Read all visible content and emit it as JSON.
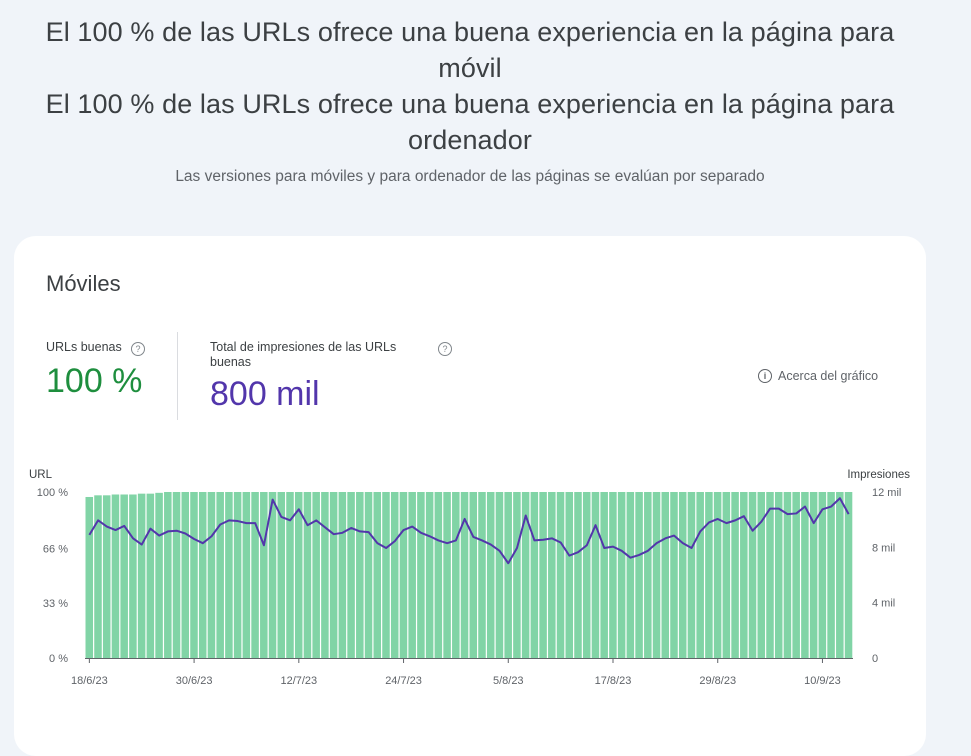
{
  "header": {
    "line1": "El 100 % de las URLs ofrece una buena experiencia en la página para",
    "line2": "móvil",
    "line3": "El 100 % de las URLs ofrece una buena experiencia en la página para",
    "line4": "ordenador",
    "subtitle": "Las versiones para móviles y para ordenador de las páginas se evalúan por separado"
  },
  "card": {
    "title": "Móviles",
    "metric_good": {
      "label": "URLs buenas",
      "value": "100 %"
    },
    "metric_impressions": {
      "label": "Total de impresiones de las URLs buenas",
      "value": "800 mil"
    },
    "about_label": "Acerca del gráfico",
    "help_glyph": "?",
    "info_glyph": "i"
  },
  "colors": {
    "bar": "#81d4a6",
    "line": "#5236ab",
    "good": "#1e8e3e"
  },
  "chart_data": {
    "type": "bar",
    "left_axis_title": "URL",
    "right_axis_title": "Impresiones",
    "left_ticks": [
      "100 %",
      "66 %",
      "33 %",
      "0 %"
    ],
    "left_tick_values": [
      100,
      66,
      33,
      0
    ],
    "right_ticks": [
      "12 mil",
      "8 mil",
      "4 mil",
      "0"
    ],
    "right_tick_values": [
      12000,
      8000,
      4000,
      0
    ],
    "x_labels": [
      "18/6/23",
      "30/6/23",
      "12/7/23",
      "24/7/23",
      "5/8/23",
      "17/8/23",
      "29/8/23",
      "10/9/23"
    ],
    "start_date": "2023-06-18",
    "series": [
      {
        "name": "URLs buenas",
        "unit": "%",
        "values": [
          97,
          98,
          98,
          98.5,
          98.5,
          98.5,
          99,
          99,
          99.5,
          100,
          100,
          100,
          100,
          100,
          100,
          100,
          100,
          100,
          100,
          100,
          100,
          100,
          100,
          100,
          100,
          100,
          100,
          100,
          100,
          100,
          100,
          100,
          100,
          100,
          100,
          100,
          100,
          100,
          100,
          100,
          100,
          100,
          100,
          100,
          100,
          100,
          100,
          100,
          100,
          100,
          100,
          100,
          100,
          100,
          100,
          100,
          100,
          100,
          100,
          100,
          100,
          100,
          100,
          100,
          100,
          100,
          100,
          100,
          100,
          100,
          100,
          100,
          100,
          100,
          100,
          100,
          100,
          100,
          100,
          100,
          100,
          100,
          100,
          100,
          100,
          100,
          100,
          100
        ]
      },
      {
        "name": "Total de impresiones de las URLs buenas",
        "unit": "impresiones",
        "values": [
          8900,
          9950,
          9500,
          9250,
          9550,
          8650,
          8200,
          9350,
          8850,
          9150,
          9200,
          9000,
          8600,
          8300,
          8800,
          9650,
          9950,
          9900,
          9750,
          9750,
          8150,
          11450,
          10200,
          9950,
          10750,
          9600,
          9950,
          9450,
          8950,
          9050,
          9400,
          9150,
          9100,
          8300,
          7950,
          8450,
          9250,
          9500,
          9050,
          8800,
          8500,
          8300,
          8500,
          10050,
          8750,
          8500,
          8200,
          7750,
          6850,
          7950,
          10300,
          8500,
          8550,
          8650,
          8350,
          7400,
          7650,
          8150,
          9600,
          7950,
          8050,
          7750,
          7250,
          7450,
          7750,
          8300,
          8650,
          8850,
          8300,
          7950,
          9150,
          9800,
          10050,
          9750,
          9950,
          10250,
          9200,
          9850,
          10800,
          10800,
          10400,
          10450,
          10950,
          9750,
          10750,
          10950,
          11550,
          10400
        ]
      }
    ],
    "ylim_left": [
      0,
      100
    ],
    "ylim_right": [
      0,
      12000
    ],
    "grid": false,
    "legend": "none"
  }
}
